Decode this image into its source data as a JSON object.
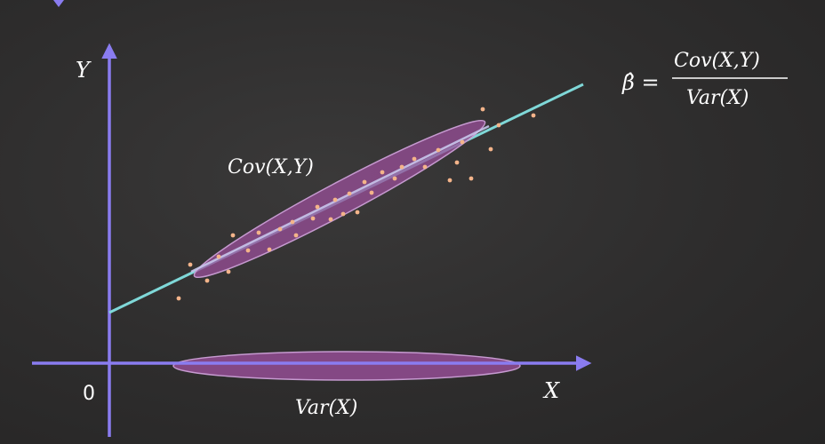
{
  "labels": {
    "y_axis": "Y",
    "x_axis": "X",
    "origin": "0",
    "cov_label": "Cov(X,Y)",
    "var_label": "Var(X)",
    "formula_lhs": "β̂ =",
    "formula_num": "Cov(X,Y)",
    "formula_den": "Var(X)"
  },
  "colors": {
    "axis": "#8a7cf0",
    "regression_line": "#7fd8d8",
    "ellipse_fill": "#9a4f9a",
    "points": "#f4b48a",
    "text": "#ffffff"
  },
  "scatter_points": [
    [
      201,
      336
    ],
    [
      214,
      298
    ],
    [
      233,
      316
    ],
    [
      246,
      289
    ],
    [
      257,
      306
    ],
    [
      262,
      265
    ],
    [
      279,
      282
    ],
    [
      291,
      262
    ],
    [
      303,
      281
    ],
    [
      315,
      258
    ],
    [
      329,
      250
    ],
    [
      333,
      265
    ],
    [
      352,
      246
    ],
    [
      357,
      233
    ],
    [
      372,
      247
    ],
    [
      377,
      225
    ],
    [
      386,
      241
    ],
    [
      393,
      218
    ],
    [
      402,
      239
    ],
    [
      410,
      205
    ],
    [
      418,
      217
    ],
    [
      430,
      194
    ],
    [
      444,
      201
    ],
    [
      452,
      188
    ],
    [
      466,
      179
    ],
    [
      478,
      188
    ],
    [
      493,
      169
    ],
    [
      506,
      203
    ],
    [
      514,
      183
    ],
    [
      520,
      160
    ],
    [
      530,
      201
    ],
    [
      543,
      123
    ],
    [
      552,
      168
    ],
    [
      561,
      141
    ],
    [
      600,
      130
    ]
  ]
}
